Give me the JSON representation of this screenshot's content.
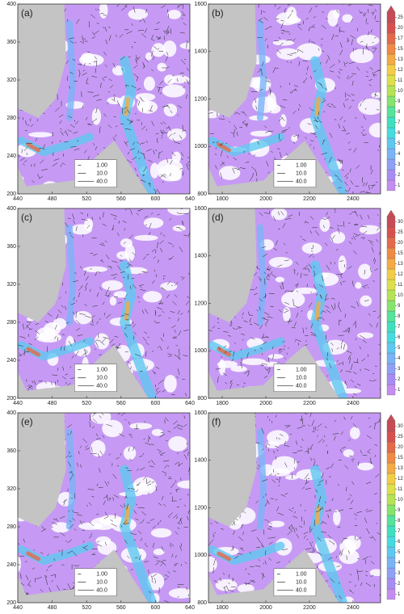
{
  "panels": [
    {
      "label": "(a)",
      "xticks": [
        440,
        480,
        520,
        560,
        600,
        640
      ],
      "yticks": [
        200,
        240,
        280,
        320,
        360,
        400
      ],
      "legend": [
        "1.00",
        "10.0",
        "40.0"
      ]
    },
    {
      "label": "(b)",
      "xticks": [
        1800,
        2000,
        2200,
        2400
      ],
      "yticks": [
        800,
        1000,
        1200,
        1400,
        1600
      ],
      "legend": [
        "1.00",
        "10.0",
        "40.0"
      ],
      "colorbar": [
        1,
        2,
        3,
        4,
        5,
        6,
        7,
        8,
        9,
        10,
        11,
        12,
        13,
        15,
        17,
        20,
        25
      ]
    },
    {
      "label": "(c)",
      "xticks": [
        440,
        480,
        520,
        560,
        600,
        640
      ],
      "yticks": [
        200,
        240,
        280,
        320,
        360,
        400
      ],
      "legend": [
        "1.00",
        "10.0",
        "40.0"
      ]
    },
    {
      "label": "(d)",
      "xticks": [
        1800,
        2000,
        2200,
        2400
      ],
      "yticks": [
        800,
        1000,
        1200,
        1400,
        1600
      ],
      "legend": [
        "1.00",
        "10.0",
        "40.0"
      ],
      "colorbar": [
        1,
        2,
        3,
        4,
        5,
        6,
        7,
        8,
        9,
        10,
        11,
        12,
        13,
        15,
        20,
        25,
        30
      ]
    },
    {
      "label": "(e)",
      "xticks": [
        440,
        480,
        520,
        560,
        600,
        640
      ],
      "yticks": [
        200,
        240,
        280,
        320,
        360,
        400
      ],
      "legend": [
        "1.00",
        "10.0",
        "40.0"
      ]
    },
    {
      "label": "(f)",
      "xticks": [
        1800,
        2000,
        2200,
        2400
      ],
      "yticks": [
        800,
        1000,
        1200,
        1400,
        1600
      ],
      "legend": [
        "1.00",
        "10.0",
        "40.0"
      ],
      "colorbar": [
        1,
        2,
        3,
        4,
        5,
        6,
        7,
        8,
        9,
        10,
        11,
        12,
        13,
        15,
        20,
        25,
        30
      ]
    }
  ]
}
